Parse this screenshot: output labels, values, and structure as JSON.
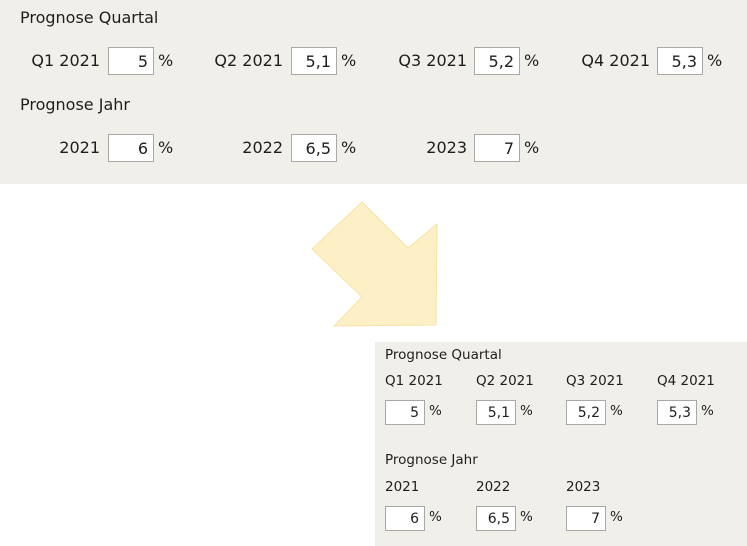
{
  "quarter_heading": "Prognose Quartal",
  "year_heading": "Prognose Jahr",
  "quarters": [
    {
      "label": "Q1 2021",
      "value": "5"
    },
    {
      "label": "Q2 2021",
      "value": "5,1"
    },
    {
      "label": "Q3 2021",
      "value": "5,2"
    },
    {
      "label": "Q4 2021",
      "value": "5,3"
    }
  ],
  "years": [
    {
      "label": "2021",
      "value": "6"
    },
    {
      "label": "2022",
      "value": "6,5"
    },
    {
      "label": "2023",
      "value": "7"
    }
  ],
  "unit": "%",
  "colors": {
    "panel_bg": "#f1efe9",
    "arrow_fill": "#fdf0c7",
    "arrow_stroke": "#f8e3a3"
  }
}
